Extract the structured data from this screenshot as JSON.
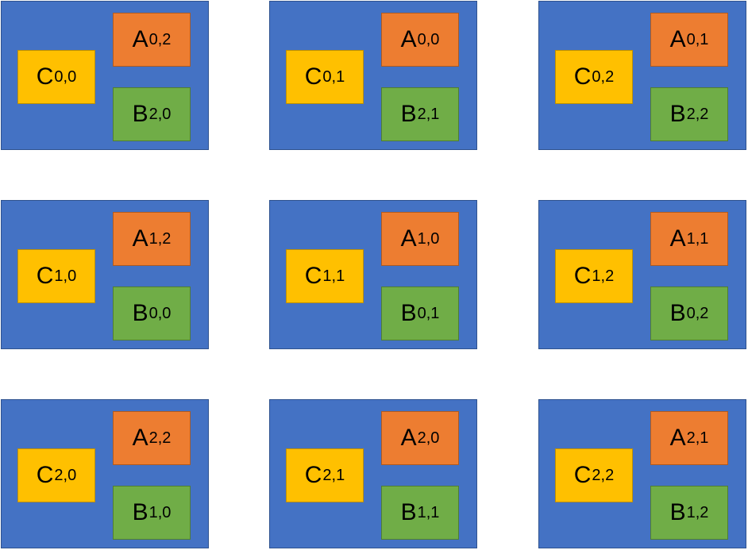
{
  "colors": {
    "processor": "#4472C4",
    "c_block": "#FFC000",
    "a_block": "#ED7D31",
    "b_block": "#70AD47"
  },
  "rows": [
    {
      "cells": [
        {
          "c": {
            "letter": "C",
            "sub": "0,0"
          },
          "a": {
            "letter": "A",
            "sub": "0,2"
          },
          "b": {
            "letter": "B",
            "sub": "2,0"
          }
        },
        {
          "c": {
            "letter": "C",
            "sub": "0,1"
          },
          "a": {
            "letter": "A",
            "sub": "0,0"
          },
          "b": {
            "letter": "B",
            "sub": "2,1"
          }
        },
        {
          "c": {
            "letter": "C",
            "sub": "0,2"
          },
          "a": {
            "letter": "A",
            "sub": "0,1"
          },
          "b": {
            "letter": "B",
            "sub": "2,2"
          }
        }
      ]
    },
    {
      "cells": [
        {
          "c": {
            "letter": "C",
            "sub": "1,0"
          },
          "a": {
            "letter": "A",
            "sub": "1,2"
          },
          "b": {
            "letter": "B",
            "sub": "0,0"
          }
        },
        {
          "c": {
            "letter": "C",
            "sub": "1,1"
          },
          "a": {
            "letter": "A",
            "sub": "1,0"
          },
          "b": {
            "letter": "B",
            "sub": "0,1"
          }
        },
        {
          "c": {
            "letter": "C",
            "sub": "1,2"
          },
          "a": {
            "letter": "A",
            "sub": "1,1"
          },
          "b": {
            "letter": "B",
            "sub": "0,2"
          }
        }
      ]
    },
    {
      "cells": [
        {
          "c": {
            "letter": "C",
            "sub": "2,0"
          },
          "a": {
            "letter": "A",
            "sub": "2,2"
          },
          "b": {
            "letter": "B",
            "sub": "1,0"
          }
        },
        {
          "c": {
            "letter": "C",
            "sub": "2,1"
          },
          "a": {
            "letter": "A",
            "sub": "2,0"
          },
          "b": {
            "letter": "B",
            "sub": "1,1"
          }
        },
        {
          "c": {
            "letter": "C",
            "sub": "2,2"
          },
          "a": {
            "letter": "A",
            "sub": "2,1"
          },
          "b": {
            "letter": "B",
            "sub": "1,2"
          }
        }
      ]
    }
  ]
}
